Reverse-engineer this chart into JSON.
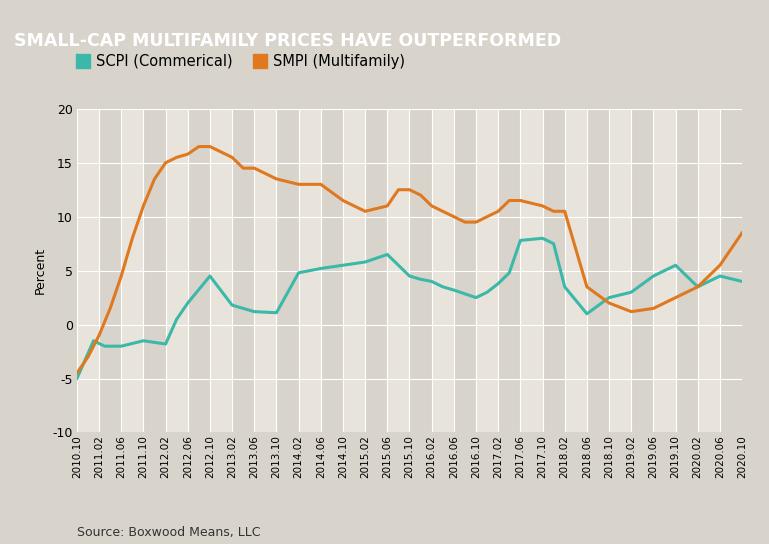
{
  "title": "SMALL-CAP MULTIFAMILY PRICES HAVE OUTPERFORMED",
  "title_bg": "#656565",
  "title_color": "#ffffff",
  "ylabel": "Percent",
  "source": "Source: Boxwood Means, LLC",
  "outer_bg": "#d8d4cc",
  "plot_bg": "#e8e4dc",
  "band_light": "#e8e4dc",
  "band_dark": "#d8d4cc",
  "legend_labels": [
    "SCPI (Commerical)",
    "SMPI (Multifamily)"
  ],
  "legend_colors": [
    "#3cb8a8",
    "#e07820"
  ],
  "ylim": [
    -10,
    20
  ],
  "yticks": [
    -10,
    -5,
    0,
    5,
    10,
    15,
    20
  ],
  "x_labels": [
    "2010.10",
    "2011.02",
    "2011.06",
    "2011.10",
    "2012.02",
    "2012.06",
    "2012.10",
    "2013.02",
    "2013.06",
    "2013.10",
    "2014.02",
    "2014.06",
    "2014.10",
    "2015.02",
    "2015.06",
    "2015.10",
    "2016.02",
    "2016.06",
    "2016.10",
    "2017.02",
    "2017.06",
    "2017.10",
    "2018.02",
    "2018.06",
    "2018.10",
    "2019.02",
    "2019.06",
    "2019.10",
    "2020.02",
    "2020.06",
    "2020.10"
  ],
  "scpi_ctrl_x": [
    0,
    3,
    5,
    8,
    12,
    16,
    18,
    20,
    24,
    28,
    32,
    36,
    40,
    44,
    48,
    52,
    56,
    60,
    62,
    64,
    66,
    68,
    72,
    74,
    76,
    78,
    80,
    84,
    86,
    88,
    92,
    96,
    100,
    104,
    108,
    112,
    116,
    120
  ],
  "scpi_ctrl_y": [
    -5.0,
    -1.5,
    -2.0,
    -2.0,
    -1.5,
    -1.8,
    0.5,
    2.0,
    4.5,
    1.8,
    1.2,
    1.1,
    4.8,
    5.2,
    5.5,
    5.8,
    6.5,
    4.5,
    4.2,
    4.0,
    3.5,
    3.2,
    2.5,
    3.0,
    3.8,
    4.8,
    7.8,
    8.0,
    7.5,
    3.5,
    1.0,
    2.5,
    3.0,
    4.5,
    5.5,
    3.5,
    4.5,
    4.0
  ],
  "smpi_ctrl_x": [
    0,
    2,
    4,
    6,
    8,
    10,
    12,
    14,
    16,
    18,
    20,
    22,
    24,
    26,
    28,
    30,
    32,
    36,
    40,
    44,
    48,
    52,
    56,
    58,
    60,
    62,
    64,
    66,
    68,
    70,
    72,
    74,
    76,
    78,
    80,
    84,
    86,
    88,
    90,
    92,
    96,
    100,
    104,
    108,
    110,
    112,
    116,
    120
  ],
  "smpi_ctrl_y": [
    -4.5,
    -3.0,
    -1.0,
    1.5,
    4.5,
    8.0,
    11.0,
    13.5,
    15.0,
    15.5,
    15.8,
    16.5,
    16.5,
    16.0,
    15.5,
    14.5,
    14.5,
    13.5,
    13.0,
    13.0,
    11.5,
    10.5,
    11.0,
    12.5,
    12.5,
    12.0,
    11.0,
    10.5,
    10.0,
    9.5,
    9.5,
    10.0,
    10.5,
    11.5,
    11.5,
    11.0,
    10.5,
    10.5,
    7.0,
    3.5,
    2.0,
    1.2,
    1.5,
    2.5,
    3.0,
    3.5,
    5.5,
    8.5
  ]
}
